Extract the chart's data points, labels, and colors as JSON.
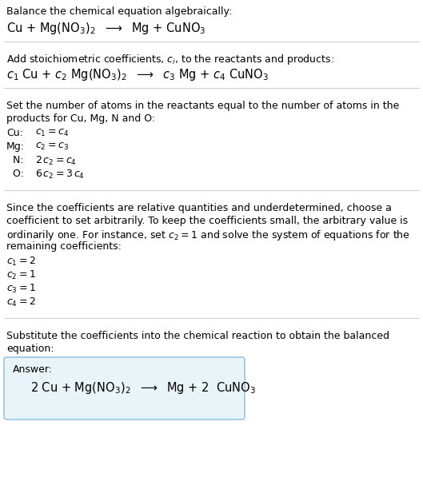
{
  "bg_color": "#ffffff",
  "text_color": "#000000",
  "box_facecolor": "#e8f4f8",
  "box_edgecolor": "#88bbdd",
  "hline_color": "#cccccc",
  "section1_title": "Balance the chemical equation algebraically:",
  "section1_eq": "Cu + Mg(NO$_3$)$_2$  $\\longrightarrow$  Mg + CuNO$_3$",
  "section2_title": "Add stoichiometric coefficients, $c_i$, to the reactants and products:",
  "section2_eq": "$c_1$ Cu + $c_2$ Mg(NO$_3$)$_2$  $\\longrightarrow$  $c_3$ Mg + $c_4$ CuNO$_3$",
  "section3_title_lines": [
    "Set the number of atoms in the reactants equal to the number of atoms in the",
    "products for Cu, Mg, N and O:"
  ],
  "section3_lines": [
    [
      "Cu:",
      "$c_1 = c_4$"
    ],
    [
      "Mg:",
      "$c_2 = c_3$"
    ],
    [
      "  N:",
      "$2\\,c_2 = c_4$"
    ],
    [
      "  O:",
      "$6\\,c_2 = 3\\,c_4$"
    ]
  ],
  "section4_title_lines": [
    "Since the coefficients are relative quantities and underdetermined, choose a",
    "coefficient to set arbitrarily. To keep the coefficients small, the arbitrary value is",
    "ordinarily one. For instance, set $c_2 = 1$ and solve the system of equations for the",
    "remaining coefficients:"
  ],
  "section4_lines": [
    "$c_1 = 2$",
    "$c_2 = 1$",
    "$c_3 = 1$",
    "$c_4 = 2$"
  ],
  "section5_title_lines": [
    "Substitute the coefficients into the chemical reaction to obtain the balanced",
    "equation:"
  ],
  "answer_label": "Answer:",
  "answer_eq": "2 Cu + Mg(NO$_3$)$_2$  $\\longrightarrow$  Mg + 2  CuNO$_3$",
  "fs_body": 9.0,
  "fs_eq": 10.5,
  "fs_answer": 10.5
}
